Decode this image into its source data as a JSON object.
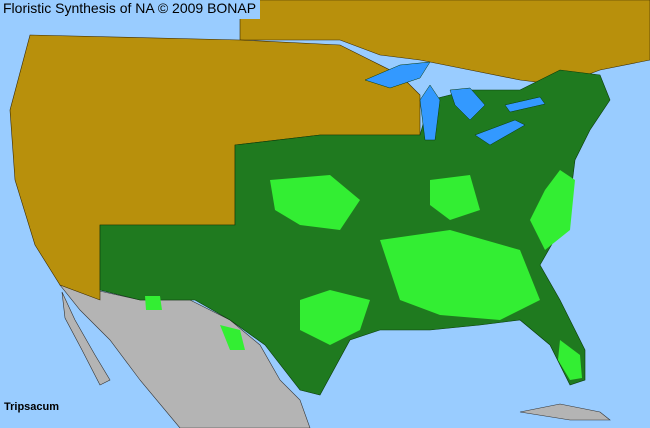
{
  "header": {
    "title": "Floristic Synthesis of NA © 2009 BONAP"
  },
  "map": {
    "taxon_label": "Tripsacum",
    "colors": {
      "ocean": "#99ccff",
      "not_present": "#b8900c",
      "present_state": "#1f7a1f",
      "present_county": "#33ee33",
      "outside_region": "#b4b4b4",
      "lakes": "#3399ff"
    }
  }
}
